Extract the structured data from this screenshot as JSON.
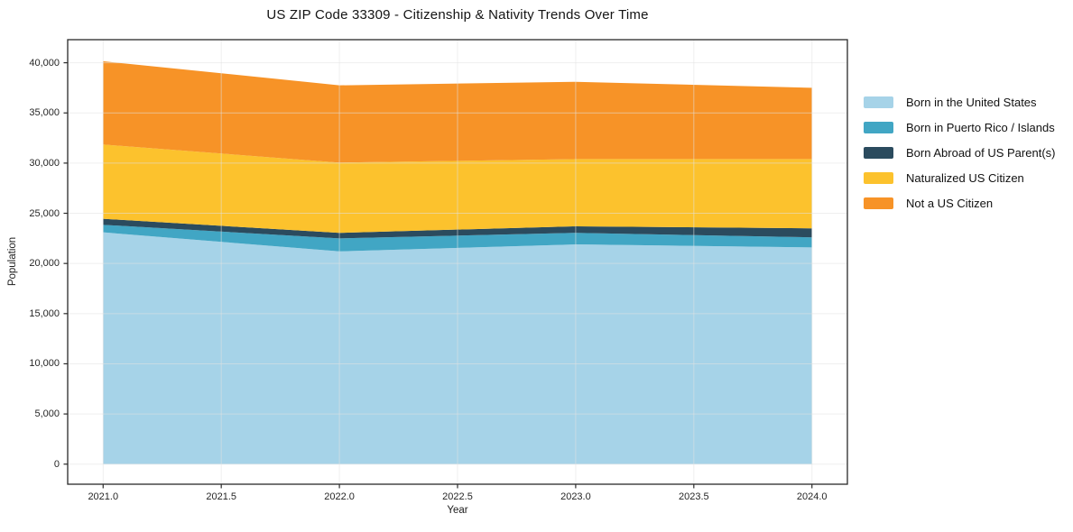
{
  "title": "US ZIP Code 33309 - Citizenship & Nativity Trends Over Time",
  "chart_data": {
    "type": "area",
    "stacked": true,
    "title": "US ZIP Code 33309 - Citizenship & Nativity Trends Over Time",
    "xlabel": "Year",
    "ylabel": "Population",
    "x": [
      2021,
      2022,
      2023,
      2024
    ],
    "series": [
      {
        "name": "Born in the United States",
        "color": "#a6d3e8",
        "values": [
          23100,
          21200,
          21900,
          21600
        ]
      },
      {
        "name": "Born in Puerto Rico / Islands",
        "color": "#41a6c4",
        "values": [
          750,
          1300,
          1150,
          1000
        ]
      },
      {
        "name": "Born Abroad of US Parent(s)",
        "color": "#2b4b5e",
        "values": [
          600,
          550,
          650,
          900
        ]
      },
      {
        "name": "Naturalized US Citizen",
        "color": "#fcc22d",
        "values": [
          7400,
          7000,
          6700,
          6900
        ]
      },
      {
        "name": "Not a US Citizen",
        "color": "#f79327",
        "values": [
          8300,
          7700,
          7700,
          7100
        ]
      }
    ],
    "xlim": [
      2020.85,
      2024.15
    ],
    "ylim": [
      -2000,
      42300
    ],
    "xticks": [
      2021.0,
      2021.5,
      2022.0,
      2022.5,
      2023.0,
      2023.5,
      2024.0
    ],
    "xtick_labels": [
      "2021.0",
      "2021.5",
      "2022.0",
      "2022.5",
      "2023.0",
      "2023.5",
      "2024.0"
    ],
    "yticks": [
      0,
      5000,
      10000,
      15000,
      20000,
      25000,
      30000,
      35000,
      40000
    ],
    "ytick_labels": [
      "0",
      "5,000",
      "10,000",
      "15,000",
      "20,000",
      "25,000",
      "30,000",
      "35,000",
      "40,000"
    ],
    "grid": true,
    "grid_color": "#e2e2e2",
    "frame_color": "#2a2a2a",
    "legend_position": "right"
  }
}
